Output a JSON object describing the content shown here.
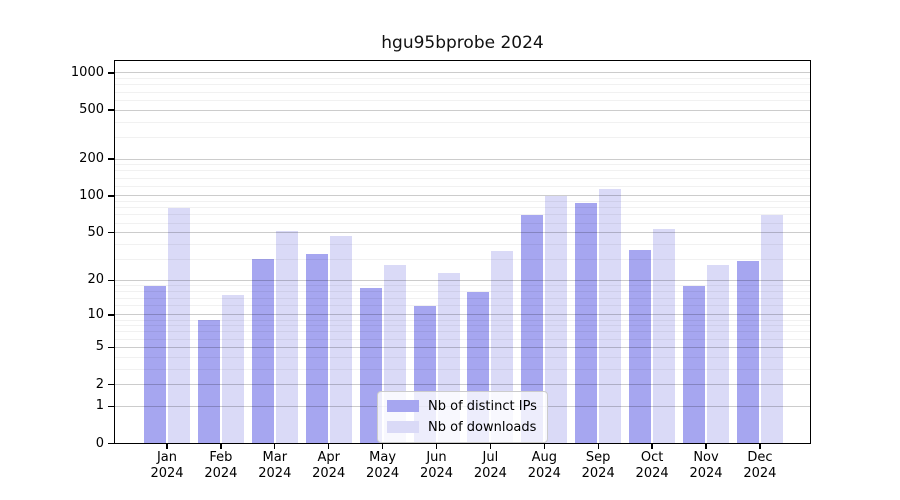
{
  "chart_data": {
    "type": "bar",
    "title": "hgu95bprobe 2024",
    "categories": [
      "Jan",
      "Feb",
      "Mar",
      "Apr",
      "May",
      "Jun",
      "Jul",
      "Aug",
      "Sep",
      "Oct",
      "Nov",
      "Dec"
    ],
    "category_year": "2024",
    "series": [
      {
        "name": "Nb of distinct IPs",
        "color": "#a6a6f0",
        "values": [
          18,
          9,
          30,
          33,
          17,
          12,
          16,
          70,
          88,
          36,
          18,
          29
        ]
      },
      {
        "name": "Nb of downloads",
        "color": "#dadaf7",
        "values": [
          80,
          15,
          52,
          47,
          27,
          23,
          35,
          100,
          113,
          54,
          27,
          70
        ]
      }
    ],
    "yscale": "log1p",
    "y_ticks": [
      1000,
      500,
      200,
      100,
      50,
      20,
      10,
      5,
      2,
      1,
      0
    ],
    "ylim": [
      0,
      1260
    ],
    "xlabel": "",
    "ylabel": "",
    "grid": "on",
    "legend_position": "lower center"
  }
}
